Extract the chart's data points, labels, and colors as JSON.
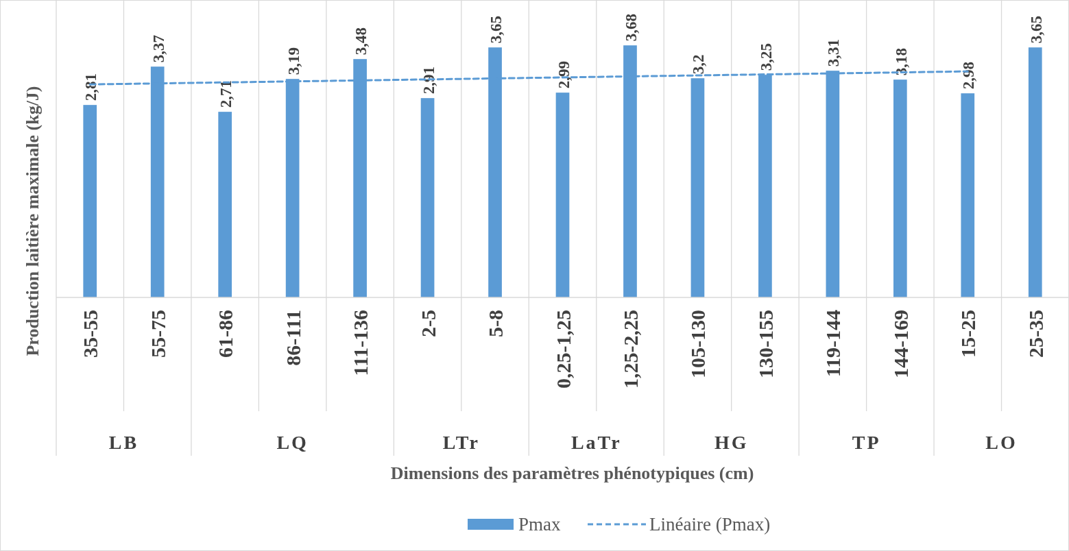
{
  "chart_data": {
    "type": "bar",
    "xlabel": "Dimensions des paramètres phénotypiques (cm)",
    "ylabel": "Production laitière maximale (kg/J)",
    "categories": [
      "35-55",
      "55-75",
      "61-86",
      "86-111",
      "111-136",
      "2-5",
      "5-8",
      "0,25-1,25",
      "1,25-2,25",
      "105-130",
      "130-155",
      "119-144",
      "144-169",
      "15-25",
      "25-35"
    ],
    "series": [
      {
        "name": "Pmax",
        "color": "#5b9bd5",
        "values": [
          2.81,
          3.37,
          2.71,
          3.19,
          3.48,
          2.91,
          3.65,
          2.99,
          3.68,
          3.2,
          3.25,
          3.31,
          3.18,
          2.98,
          3.65
        ],
        "value_labels": [
          "2,81",
          "3,37",
          "2,71",
          "3,19",
          "3,48",
          "2,91",
          "3,65",
          "2,99",
          "3,68",
          "3,2",
          "3,25",
          "3,31",
          "3,18",
          "2,98",
          "3,65"
        ]
      },
      {
        "name": "Linéaire (Pmax)",
        "type": "line",
        "color": "#5b9bd5",
        "line_style": "dashed",
        "marker": "none",
        "x": [
          "35-55",
          "15-25"
        ],
        "values": [
          3.11,
          3.3
        ]
      }
    ],
    "annotations": [
      "LB",
      "LQ",
      "LTr",
      "LaTr",
      "HG",
      "TP",
      "LO"
    ],
    "grid": "x",
    "legend": "bottom",
    "tick_labels": "x"
  }
}
